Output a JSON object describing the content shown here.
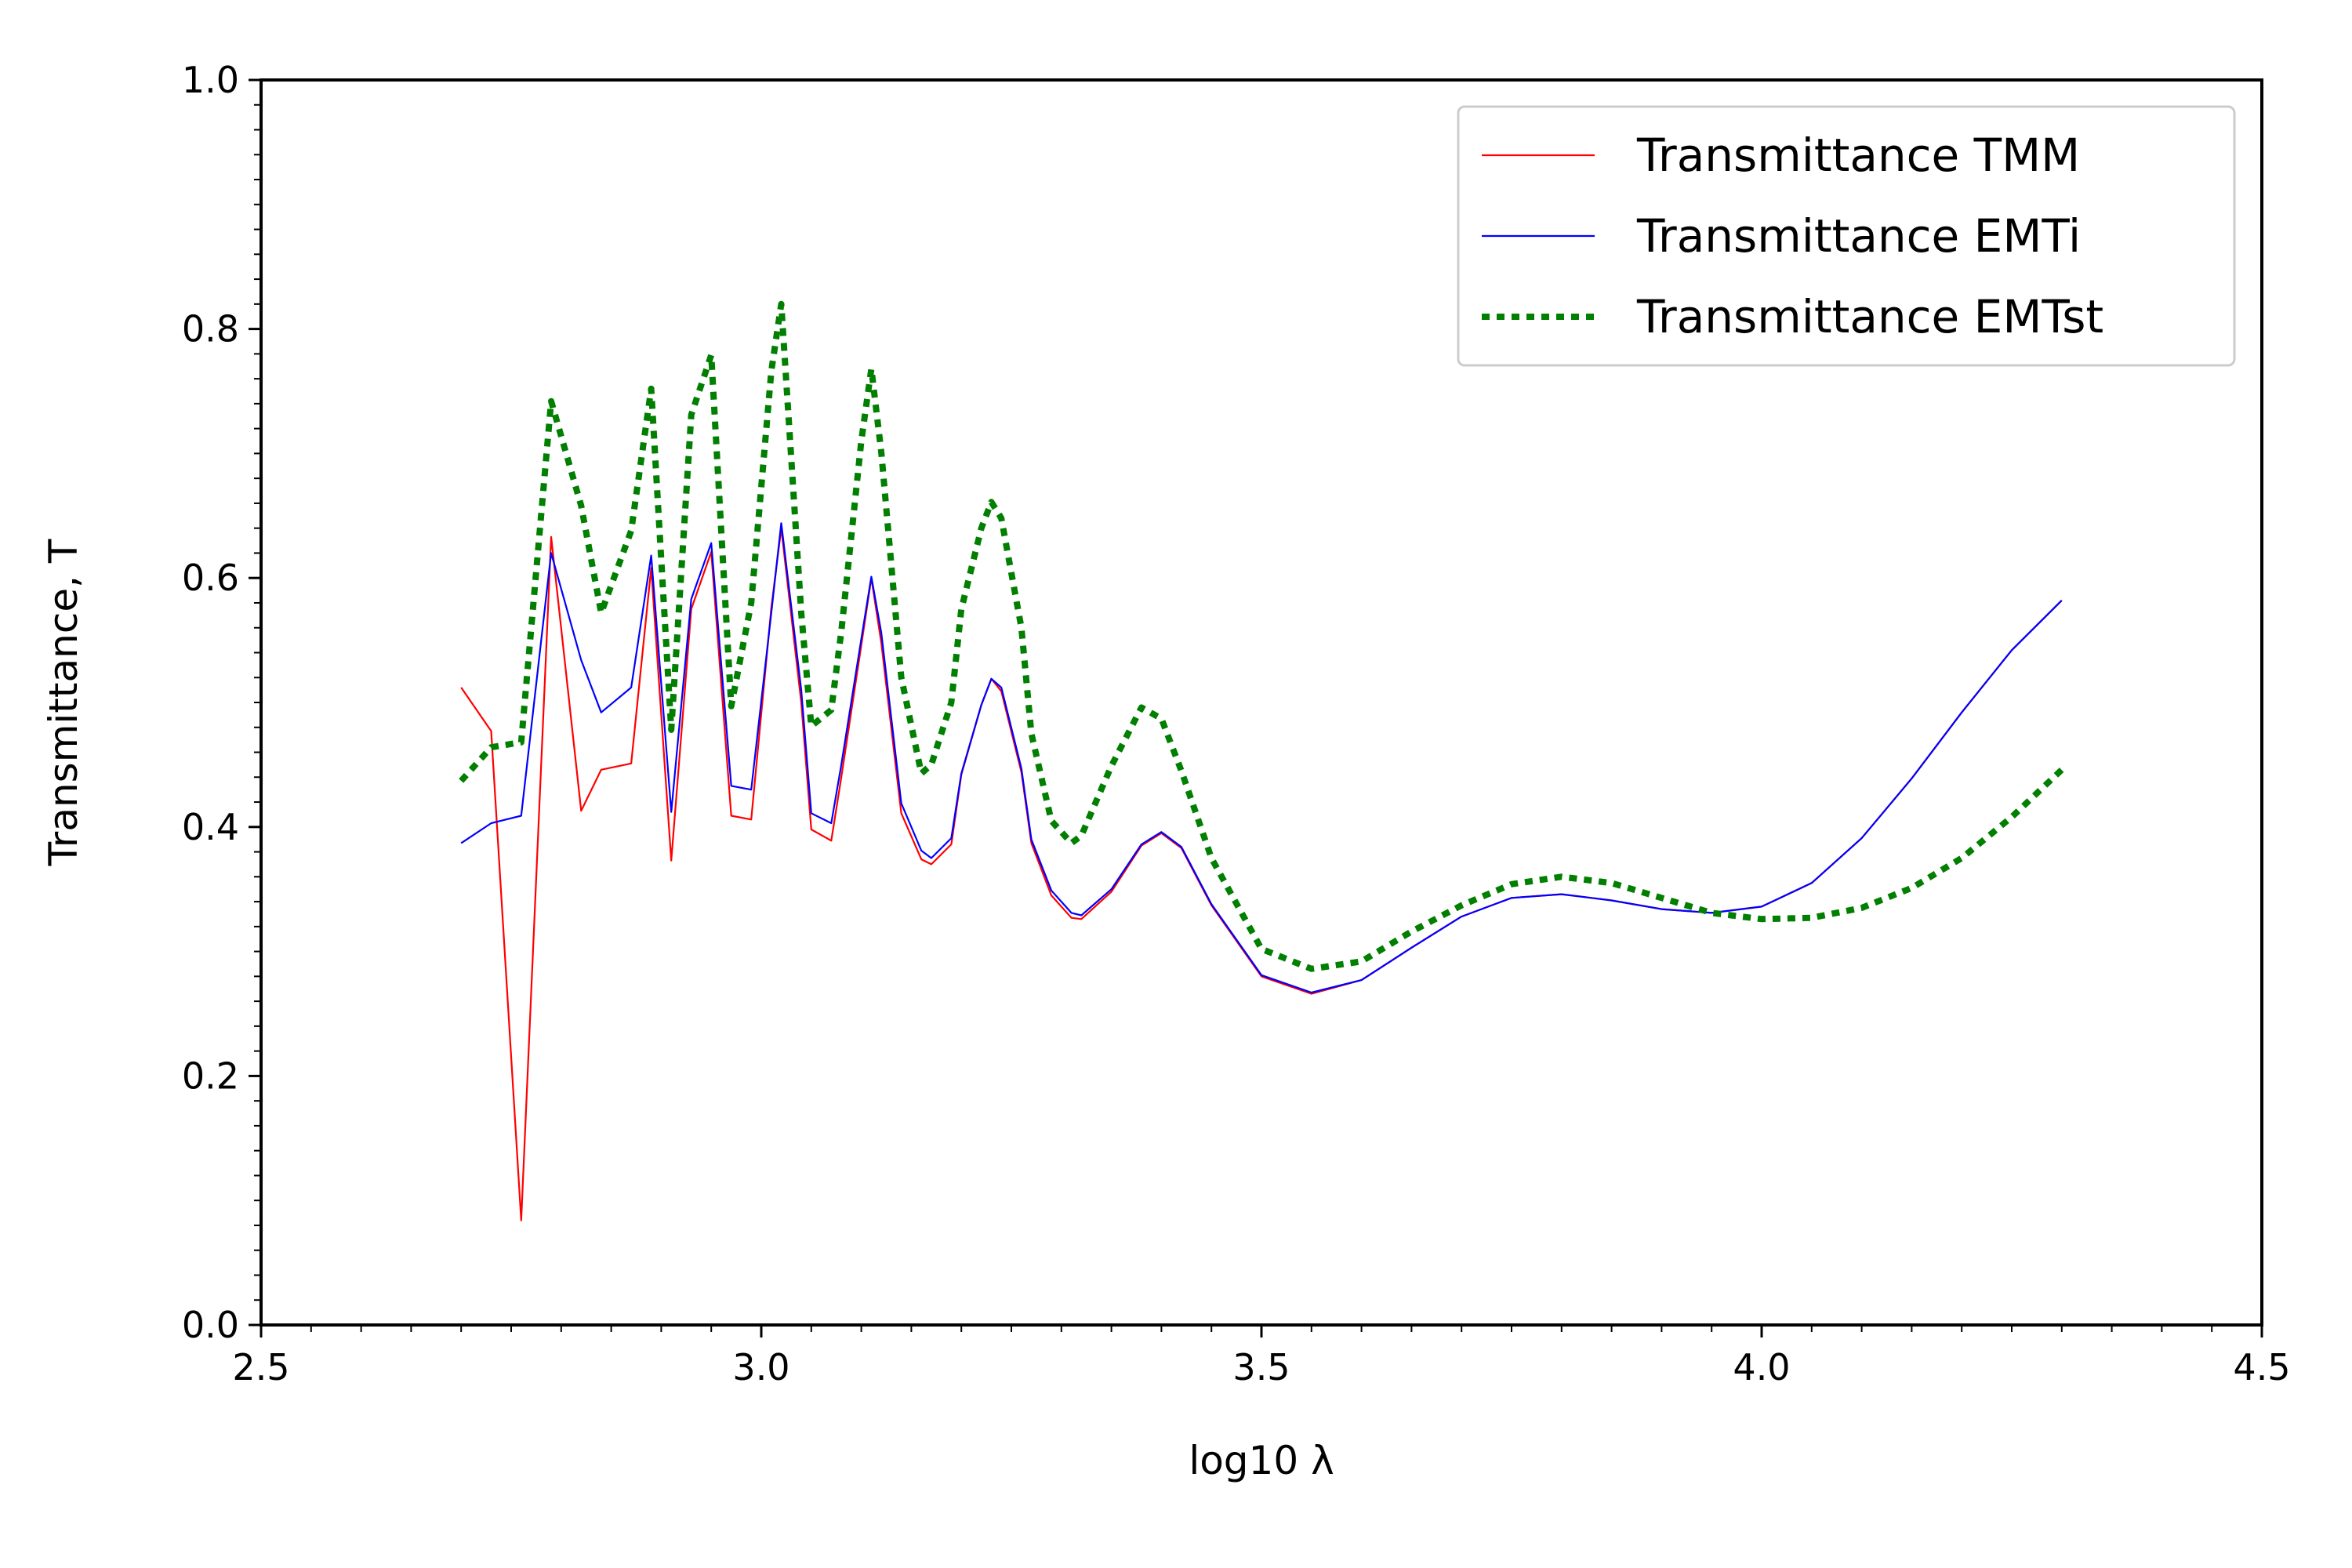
{
  "chart_data": {
    "type": "line",
    "title": "",
    "xlabel": "log10 λ",
    "ylabel": "Transmittance, T",
    "xlim": [
      2.5,
      4.5
    ],
    "ylim": [
      0.0,
      1.0
    ],
    "xticks": [
      2.5,
      3.0,
      3.5,
      4.0,
      4.5
    ],
    "xtick_labels": [
      "2.5",
      "3.0",
      "3.5",
      "4.0",
      "4.5"
    ],
    "yticks": [
      0.0,
      0.2,
      0.4,
      0.6,
      0.8,
      1.0
    ],
    "ytick_labels": [
      "0.0",
      "0.2",
      "0.4",
      "0.6",
      "0.8",
      "1.0"
    ],
    "grid": false,
    "legend_position": "top-right",
    "series": [
      {
        "name": "Transmittance TMM",
        "color": "#ff0000",
        "style": "solid",
        "points": [
          [
            2.7,
            0.512
          ],
          [
            2.73,
            0.477
          ],
          [
            2.76,
            0.084
          ],
          [
            2.79,
            0.633
          ],
          [
            2.82,
            0.413
          ],
          [
            2.84,
            0.446
          ],
          [
            2.87,
            0.451
          ],
          [
            2.89,
            0.608
          ],
          [
            2.91,
            0.373
          ],
          [
            2.93,
            0.575
          ],
          [
            2.95,
            0.621
          ],
          [
            2.97,
            0.409
          ],
          [
            2.99,
            0.406
          ],
          [
            3.01,
            0.576
          ],
          [
            3.02,
            0.64
          ],
          [
            3.04,
            0.5
          ],
          [
            3.05,
            0.398
          ],
          [
            3.07,
            0.389
          ],
          [
            3.08,
            0.44
          ],
          [
            3.1,
            0.546
          ],
          [
            3.11,
            0.6
          ],
          [
            3.12,
            0.548
          ],
          [
            3.14,
            0.411
          ],
          [
            3.16,
            0.374
          ],
          [
            3.17,
            0.37
          ],
          [
            3.19,
            0.386
          ],
          [
            3.2,
            0.442
          ],
          [
            3.22,
            0.498
          ],
          [
            3.23,
            0.519
          ],
          [
            3.24,
            0.509
          ],
          [
            3.26,
            0.444
          ],
          [
            3.27,
            0.387
          ],
          [
            3.29,
            0.345
          ],
          [
            3.31,
            0.327
          ],
          [
            3.32,
            0.326
          ],
          [
            3.35,
            0.348
          ],
          [
            3.38,
            0.385
          ],
          [
            3.4,
            0.395
          ],
          [
            3.42,
            0.383
          ],
          [
            3.45,
            0.337
          ],
          [
            3.5,
            0.28
          ],
          [
            3.55,
            0.266
          ],
          [
            3.6,
            0.277
          ],
          [
            3.65,
            0.303
          ],
          [
            3.7,
            0.328
          ],
          [
            3.75,
            0.343
          ],
          [
            3.8,
            0.346
          ],
          [
            3.85,
            0.341
          ],
          [
            3.9,
            0.334
          ],
          [
            3.95,
            0.331
          ],
          [
            4.0,
            0.336
          ],
          [
            4.05,
            0.355
          ],
          [
            4.1,
            0.391
          ],
          [
            4.15,
            0.439
          ],
          [
            4.2,
            0.492
          ],
          [
            4.25,
            0.542
          ],
          [
            4.3,
            0.582
          ]
        ]
      },
      {
        "name": "Transmittance EMTi",
        "color": "#0000ff",
        "style": "solid",
        "points": [
          [
            2.7,
            0.387
          ],
          [
            2.73,
            0.403
          ],
          [
            2.76,
            0.409
          ],
          [
            2.79,
            0.62
          ],
          [
            2.82,
            0.534
          ],
          [
            2.84,
            0.492
          ],
          [
            2.87,
            0.512
          ],
          [
            2.89,
            0.618
          ],
          [
            2.91,
            0.412
          ],
          [
            2.93,
            0.583
          ],
          [
            2.95,
            0.628
          ],
          [
            2.97,
            0.433
          ],
          [
            2.99,
            0.43
          ],
          [
            3.01,
            0.572
          ],
          [
            3.02,
            0.644
          ],
          [
            3.04,
            0.51
          ],
          [
            3.05,
            0.411
          ],
          [
            3.07,
            0.403
          ],
          [
            3.08,
            0.45
          ],
          [
            3.1,
            0.551
          ],
          [
            3.11,
            0.601
          ],
          [
            3.12,
            0.556
          ],
          [
            3.14,
            0.419
          ],
          [
            3.16,
            0.381
          ],
          [
            3.17,
            0.375
          ],
          [
            3.19,
            0.391
          ],
          [
            3.2,
            0.443
          ],
          [
            3.22,
            0.498
          ],
          [
            3.23,
            0.519
          ],
          [
            3.24,
            0.512
          ],
          [
            3.26,
            0.447
          ],
          [
            3.27,
            0.39
          ],
          [
            3.29,
            0.349
          ],
          [
            3.31,
            0.331
          ],
          [
            3.32,
            0.329
          ],
          [
            3.35,
            0.35
          ],
          [
            3.38,
            0.386
          ],
          [
            3.4,
            0.396
          ],
          [
            3.42,
            0.384
          ],
          [
            3.45,
            0.338
          ],
          [
            3.5,
            0.281
          ],
          [
            3.55,
            0.267
          ],
          [
            3.6,
            0.277
          ],
          [
            3.65,
            0.303
          ],
          [
            3.7,
            0.328
          ],
          [
            3.75,
            0.343
          ],
          [
            3.8,
            0.346
          ],
          [
            3.85,
            0.341
          ],
          [
            3.9,
            0.334
          ],
          [
            3.95,
            0.331
          ],
          [
            4.0,
            0.336
          ],
          [
            4.05,
            0.355
          ],
          [
            4.1,
            0.391
          ],
          [
            4.15,
            0.439
          ],
          [
            4.2,
            0.492
          ],
          [
            4.25,
            0.542
          ],
          [
            4.3,
            0.582
          ]
        ]
      },
      {
        "name": "Transmittance EMTst",
        "color": "#007f00",
        "style": "dotted",
        "points": [
          [
            2.7,
            0.437
          ],
          [
            2.73,
            0.464
          ],
          [
            2.76,
            0.468
          ],
          [
            2.79,
            0.742
          ],
          [
            2.82,
            0.658
          ],
          [
            2.84,
            0.572
          ],
          [
            2.87,
            0.638
          ],
          [
            2.89,
            0.752
          ],
          [
            2.91,
            0.478
          ],
          [
            2.93,
            0.731
          ],
          [
            2.95,
            0.779
          ],
          [
            2.97,
            0.497
          ],
          [
            2.99,
            0.58
          ],
          [
            3.01,
            0.766
          ],
          [
            3.02,
            0.82
          ],
          [
            3.04,
            0.572
          ],
          [
            3.05,
            0.481
          ],
          [
            3.07,
            0.494
          ],
          [
            3.08,
            0.557
          ],
          [
            3.1,
            0.71
          ],
          [
            3.11,
            0.768
          ],
          [
            3.12,
            0.701
          ],
          [
            3.14,
            0.52
          ],
          [
            3.16,
            0.443
          ],
          [
            3.17,
            0.45
          ],
          [
            3.19,
            0.5
          ],
          [
            3.2,
            0.575
          ],
          [
            3.22,
            0.64
          ],
          [
            3.23,
            0.661
          ],
          [
            3.24,
            0.648
          ],
          [
            3.26,
            0.56
          ],
          [
            3.27,
            0.475
          ],
          [
            3.29,
            0.405
          ],
          [
            3.31,
            0.387
          ],
          [
            3.32,
            0.393
          ],
          [
            3.35,
            0.449
          ],
          [
            3.38,
            0.496
          ],
          [
            3.4,
            0.487
          ],
          [
            3.42,
            0.445
          ],
          [
            3.45,
            0.375
          ],
          [
            3.5,
            0.302
          ],
          [
            3.55,
            0.286
          ],
          [
            3.6,
            0.292
          ],
          [
            3.65,
            0.316
          ],
          [
            3.7,
            0.337
          ],
          [
            3.75,
            0.354
          ],
          [
            3.8,
            0.36
          ],
          [
            3.85,
            0.355
          ],
          [
            3.9,
            0.343
          ],
          [
            3.95,
            0.331
          ],
          [
            4.0,
            0.326
          ],
          [
            4.05,
            0.327
          ],
          [
            4.1,
            0.335
          ],
          [
            4.15,
            0.351
          ],
          [
            4.2,
            0.375
          ],
          [
            4.25,
            0.408
          ],
          [
            4.3,
            0.446
          ]
        ]
      }
    ]
  }
}
